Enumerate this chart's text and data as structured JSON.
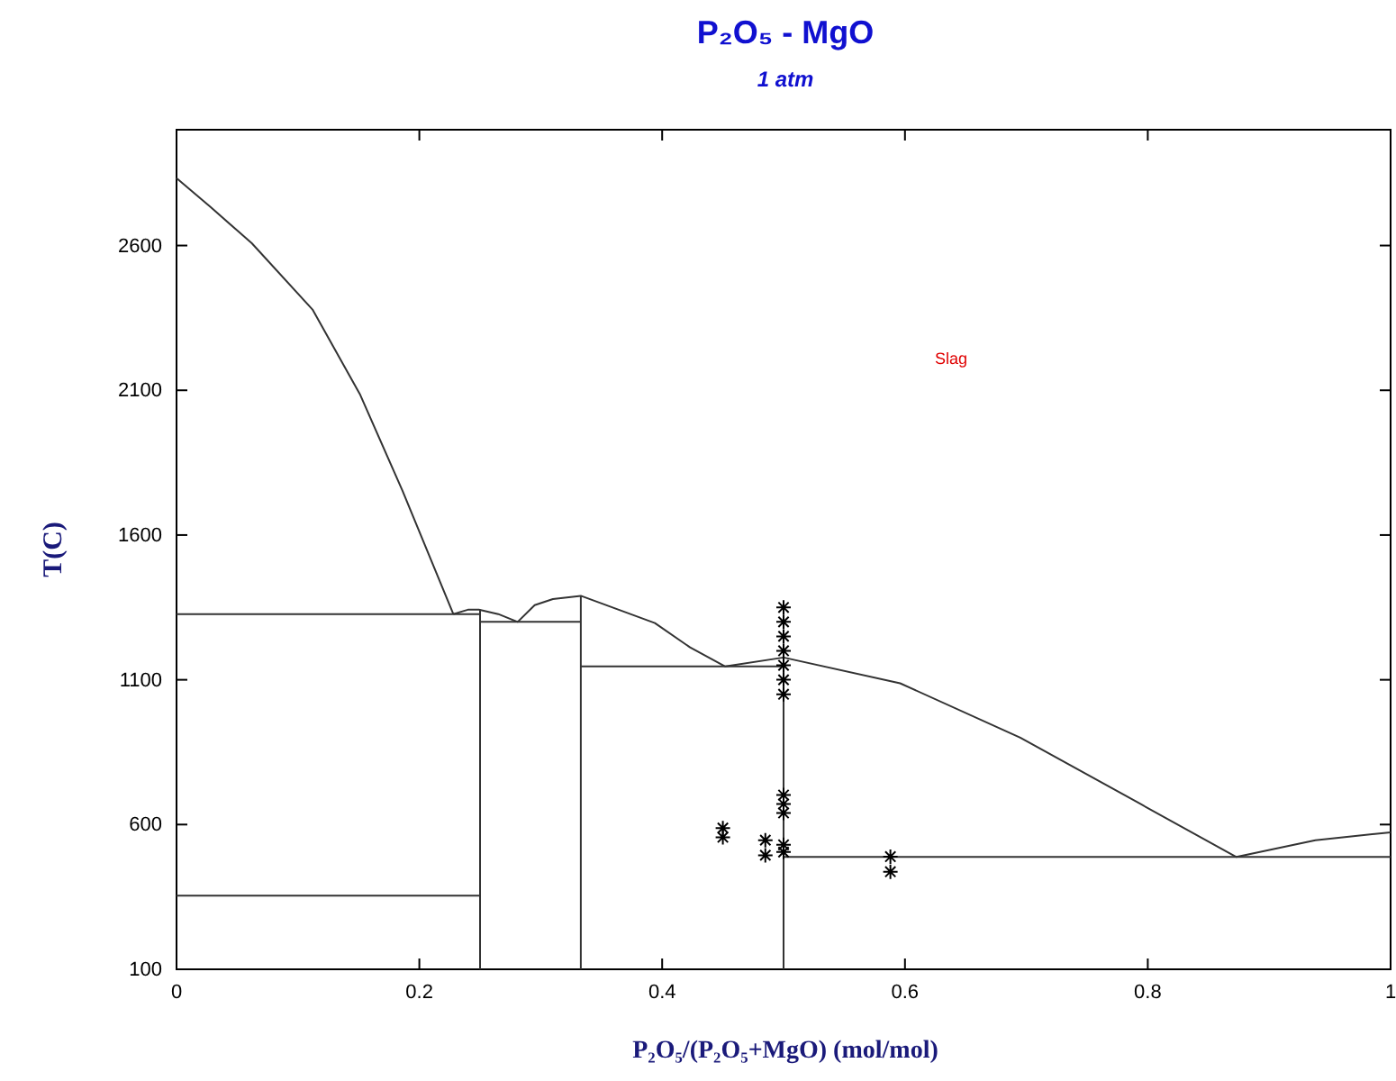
{
  "chart_data": {
    "type": "line",
    "title": "P₂O₅ - MgO",
    "subtitle": "1 atm",
    "xlabel": "P₂O₅/(P₂O₅+MgO) (mol/mol)",
    "ylabel": "T(C)",
    "xlim": [
      0,
      1
    ],
    "xticks": [
      0,
      0.2,
      0.4,
      0.6,
      0.8,
      1
    ],
    "ylim": [
      100,
      3000
    ],
    "yticks": [
      100,
      600,
      1100,
      1600,
      2100,
      2600
    ],
    "grid": false,
    "line_style": "solid",
    "annotations": [
      "Slag"
    ],
    "series": [
      {
        "color": "#333333",
        "x": [
          0,
          0.028,
          0.062,
          0.112,
          0.151,
          0.186,
          0.228
        ],
        "values": [
          2833,
          2733,
          2608,
          2379,
          2087,
          1754,
          1327
        ]
      },
      {
        "color": "#333333",
        "x": [
          0.228,
          0.24,
          0.249,
          0.265,
          0.281,
          0.295,
          0.31,
          0.333,
          0.394,
          0.423,
          0.452,
          0.5,
          0.596,
          0.695,
          0.794,
          0.873,
          0.938,
          1.0
        ],
        "values": [
          1327,
          1342,
          1342,
          1327,
          1300,
          1358,
          1379,
          1390,
          1296,
          1212,
          1146,
          1177,
          1088,
          900,
          671,
          488,
          546,
          573
        ]
      },
      {
        "color": "#333333",
        "x": [
          0.25,
          0.25
        ],
        "values": [
          100,
          1342
        ]
      },
      {
        "color": "#333333",
        "x": [
          0.333,
          0.333
        ],
        "values": [
          100,
          1390
        ]
      },
      {
        "color": "#333333",
        "x": [
          0.5,
          0.5
        ],
        "values": [
          100,
          1177
        ]
      },
      {
        "color": "#333333",
        "x": [
          0,
          0.25
        ],
        "values": [
          1327,
          1327
        ]
      },
      {
        "color": "#333333",
        "x": [
          0.25,
          0.333
        ],
        "values": [
          1300,
          1300
        ]
      },
      {
        "color": "#333333",
        "x": [
          0.333,
          0.5
        ],
        "values": [
          1146,
          1146
        ]
      },
      {
        "color": "#333333",
        "x": [
          0.5,
          1.0
        ],
        "values": [
          488,
          488
        ]
      },
      {
        "color": "#333333",
        "x": [
          0,
          0.25
        ],
        "values": [
          354,
          354
        ]
      },
      {
        "type": "scatter",
        "marker": "cross",
        "color": "#000000",
        "x": [
          0.5,
          0.5,
          0.5,
          0.5,
          0.5,
          0.5,
          0.5,
          0.5,
          0.5,
          0.5,
          0.45,
          0.45,
          0.485,
          0.485,
          0.5,
          0.5,
          0.588,
          0.588
        ],
        "values": [
          1350,
          1300,
          1250,
          1200,
          1150,
          1100,
          1050,
          702,
          671,
          640,
          588,
          556,
          546,
          494,
          530,
          505,
          489,
          437
        ]
      }
    ]
  }
}
